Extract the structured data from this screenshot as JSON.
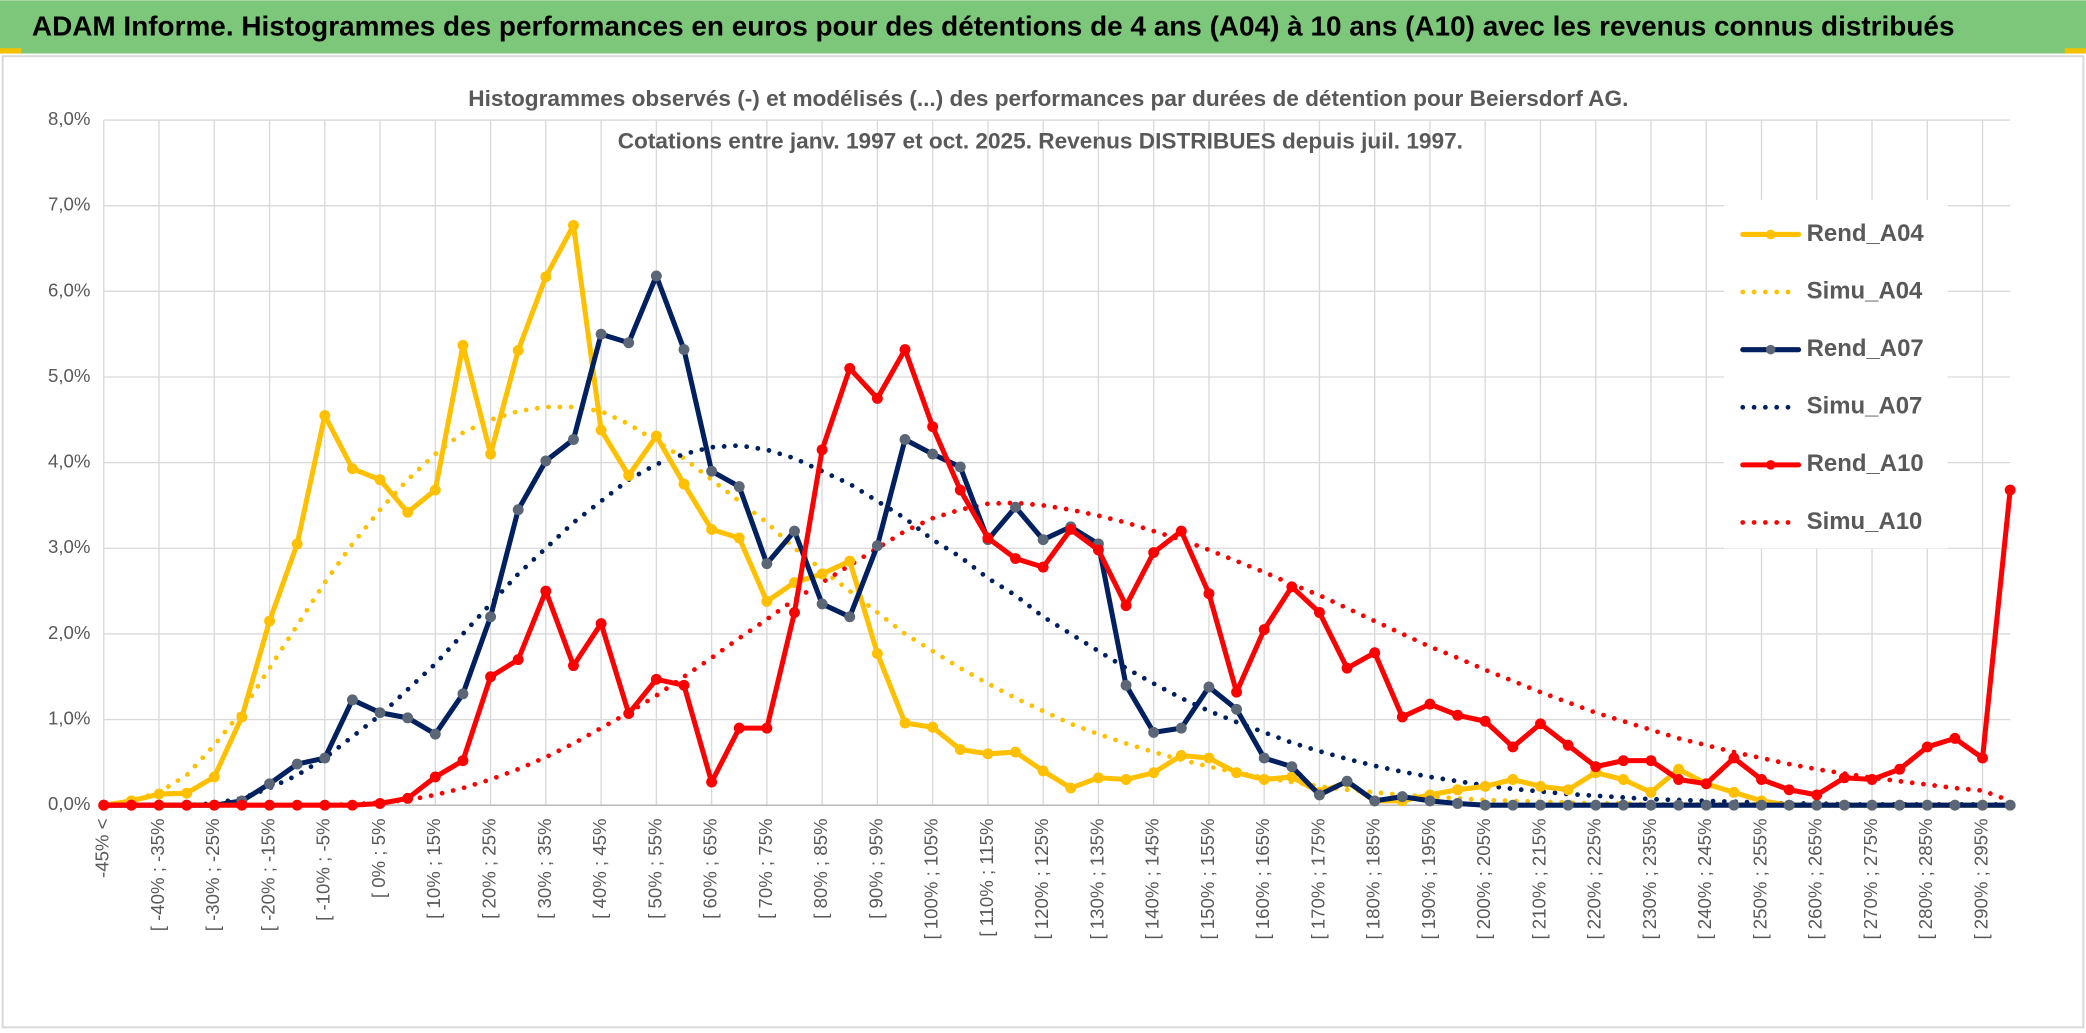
{
  "header": {
    "title": "ADAM Informe. Histogrammes des performances en euros pour des détentions de 4 ans (A04) à 10 ans (A10) avec les revenus connus distribués"
  },
  "chart_data": {
    "type": "line",
    "title": "Histogrammes observés (-) et modélisés (...) des performances par durées de détention pour Beiersdorf AG.",
    "subtitle": "Cotations entre janv. 1997 et oct. 2025. Revenus DISTRIBUES depuis juil. 1997.",
    "categories": [
      "-45% <",
      null,
      "[ -40% ; -35%",
      null,
      "[ -30% ; -25%",
      null,
      "[ -20% ; -15%",
      null,
      "[ -10% ; -5%",
      null,
      "[ 0% ; 5%",
      null,
      "[ 10% ; 15%",
      null,
      "[ 20% ; 25%",
      null,
      "[ 30% ; 35%",
      null,
      "[ 40% ; 45%",
      null,
      "[ 50% ; 55%",
      null,
      "[ 60% ; 65%",
      null,
      "[ 70% ; 75%",
      null,
      "[ 80% ; 85%",
      null,
      "[ 90% ; 95%",
      null,
      "[ 100% ; 105%",
      null,
      "[ 110% ; 115%",
      null,
      "[ 120% ; 125%",
      null,
      "[ 130% ; 135%",
      null,
      "[ 140% ; 145%",
      null,
      "[ 150% ; 155%",
      null,
      "[ 160% ; 165%",
      null,
      "[ 170% ; 175%",
      null,
      "[ 180% ; 185%",
      null,
      "[ 190% ; 195%",
      null,
      "[ 200% ; 205%",
      null,
      "[ 210% ; 215%",
      null,
      "[ 220% ; 225%",
      null,
      "[ 230% ; 235%",
      null,
      "[ 240% ; 245%",
      null,
      "[ 250% ; 255%",
      null,
      "[ 260% ; 265%",
      null,
      "[ 270% ; 275%",
      null,
      "[ 280% ; 285%",
      null,
      "[ 290% ; 295%",
      null
    ],
    "ylim": [
      0,
      8
    ],
    "yticks": [
      {
        "value": 0,
        "label": "0,0%"
      },
      {
        "value": 1,
        "label": "1,0%"
      },
      {
        "value": 2,
        "label": "2,0%"
      },
      {
        "value": 3,
        "label": "3,0%"
      },
      {
        "value": 4,
        "label": "4,0%"
      },
      {
        "value": 5,
        "label": "5,0%"
      },
      {
        "value": 6,
        "label": "6,0%"
      },
      {
        "value": 7,
        "label": "7,0%"
      },
      {
        "value": 8,
        "label": "8,0%"
      }
    ],
    "grid": true,
    "legend": "right",
    "series": [
      {
        "name": "Rend_A04",
        "color": "#FFC000",
        "dotted": false,
        "markers": true,
        "marker_color": "#FFC000",
        "values": [
          0,
          0.05,
          0.13,
          0.14,
          0.33,
          1.03,
          2.15,
          3.05,
          4.55,
          3.93,
          3.8,
          3.42,
          3.68,
          5.37,
          4.1,
          5.31,
          6.17,
          6.77,
          4.38,
          3.85,
          4.31,
          3.75,
          3.22,
          3.12,
          2.38,
          2.6,
          2.7,
          2.85,
          1.77,
          0.96,
          0.91,
          0.65,
          0.6,
          0.62,
          0.4,
          0.2,
          0.32,
          0.3,
          0.38,
          0.58,
          0.55,
          0.38,
          0.3,
          0.33,
          0.15,
          0.27,
          0.05,
          0.05,
          0.12,
          0.18,
          0.22,
          0.3,
          0.22,
          0.18,
          0.38,
          0.3,
          0.15,
          0.42,
          0.25,
          0.15,
          0.05,
          0,
          0,
          0,
          0,
          0,
          0,
          0,
          0,
          0
        ]
      },
      {
        "name": "Simu_A04",
        "color": "#FFC000",
        "dotted": true,
        "markers": false,
        "values": [
          0,
          0.05,
          0.15,
          0.35,
          0.7,
          1.1,
          1.6,
          2.1,
          2.6,
          3.05,
          3.45,
          3.8,
          4.1,
          4.35,
          4.5,
          4.6,
          4.65,
          4.65,
          4.6,
          4.45,
          4.25,
          4.05,
          3.8,
          3.55,
          3.3,
          3.0,
          2.75,
          2.5,
          2.25,
          2.0,
          1.8,
          1.6,
          1.42,
          1.25,
          1.1,
          0.95,
          0.83,
          0.72,
          0.62,
          0.53,
          0.45,
          0.38,
          0.32,
          0.27,
          0.22,
          0.18,
          0.15,
          0.12,
          0.1,
          0.08,
          0.06,
          0.05,
          0.04,
          0.03,
          0.02,
          0.02,
          0.01,
          0.01,
          0.01,
          0.01,
          0.01,
          0,
          0,
          0,
          0,
          0,
          0,
          0,
          0,
          0
        ]
      },
      {
        "name": "Rend_A07",
        "color": "#002060",
        "dotted": false,
        "markers": true,
        "marker_color": "#5b6677",
        "values": [
          0,
          0,
          0,
          0,
          0,
          0.05,
          0.25,
          0.48,
          0.55,
          1.23,
          1.08,
          1.02,
          0.83,
          1.3,
          2.2,
          3.45,
          4.02,
          4.27,
          5.5,
          5.4,
          6.18,
          5.32,
          3.9,
          3.72,
          2.82,
          3.2,
          2.35,
          2.2,
          3.03,
          4.27,
          4.1,
          3.95,
          3.1,
          3.48,
          3.1,
          3.25,
          3.05,
          1.4,
          0.85,
          0.9,
          1.38,
          1.12,
          0.55,
          0.45,
          0.12,
          0.28,
          0.05,
          0.1,
          0.05,
          0.02,
          0,
          0,
          0,
          0,
          0,
          0,
          0,
          0,
          0,
          0,
          0,
          0,
          0,
          0,
          0,
          0,
          0,
          0,
          0,
          0
        ]
      },
      {
        "name": "Simu_A07",
        "color": "#002060",
        "dotted": true,
        "markers": false,
        "values": [
          0,
          0,
          0,
          0,
          0.02,
          0.08,
          0.2,
          0.35,
          0.55,
          0.8,
          1.05,
          1.35,
          1.65,
          2.0,
          2.35,
          2.7,
          3.0,
          3.3,
          3.55,
          3.8,
          3.98,
          4.1,
          4.18,
          4.2,
          4.15,
          4.05,
          3.9,
          3.75,
          3.55,
          3.35,
          3.1,
          2.9,
          2.65,
          2.45,
          2.2,
          2.0,
          1.8,
          1.6,
          1.42,
          1.25,
          1.1,
          0.97,
          0.85,
          0.73,
          0.63,
          0.54,
          0.46,
          0.39,
          0.33,
          0.28,
          0.23,
          0.19,
          0.16,
          0.13,
          0.11,
          0.09,
          0.07,
          0.06,
          0.05,
          0.04,
          0.03,
          0.02,
          0.02,
          0.01,
          0.01,
          0.01,
          0.01,
          0.01,
          0.01,
          0.01
        ]
      },
      {
        "name": "Rend_A10",
        "color": "#FF0000",
        "dotted": false,
        "markers": true,
        "marker_color": "#FF0000",
        "values": [
          0,
          0,
          0,
          0,
          0,
          0,
          0,
          0,
          0,
          0,
          0.02,
          0.08,
          0.33,
          0.52,
          1.5,
          1.7,
          2.5,
          1.63,
          2.12,
          1.07,
          1.47,
          1.4,
          0.27,
          0.9,
          0.9,
          2.25,
          4.15,
          5.1,
          4.75,
          5.32,
          4.42,
          3.68,
          3.12,
          2.88,
          2.78,
          3.22,
          2.98,
          2.33,
          2.95,
          3.2,
          2.47,
          1.32,
          2.05,
          2.55,
          2.25,
          1.6,
          1.78,
          1.03,
          1.18,
          1.05,
          0.98,
          0.68,
          0.95,
          0.7,
          0.45,
          0.52,
          0.52,
          0.3,
          0.25,
          0.55,
          0.3,
          0.18,
          0.12,
          0.32,
          0.3,
          0.42,
          0.68,
          0.78,
          0.55,
          3.68
        ]
      },
      {
        "name": "Simu_A10",
        "color": "#FF0000",
        "dotted": true,
        "markers": false,
        "values": [
          0,
          0,
          0,
          0,
          0,
          0,
          0,
          0,
          0,
          0.01,
          0.03,
          0.06,
          0.12,
          0.2,
          0.3,
          0.42,
          0.56,
          0.72,
          0.9,
          1.08,
          1.28,
          1.5,
          1.72,
          1.95,
          2.17,
          2.4,
          2.6,
          2.8,
          3.0,
          3.2,
          3.35,
          3.45,
          3.52,
          3.53,
          3.5,
          3.45,
          3.38,
          3.3,
          3.2,
          3.1,
          2.98,
          2.85,
          2.72,
          2.58,
          2.45,
          2.3,
          2.15,
          2.0,
          1.85,
          1.72,
          1.58,
          1.45,
          1.32,
          1.2,
          1.08,
          0.98,
          0.88,
          0.78,
          0.7,
          0.62,
          0.55,
          0.48,
          0.42,
          0.37,
          0.32,
          0.28,
          0.24,
          0.2,
          0.17,
          0.05
        ]
      }
    ]
  }
}
